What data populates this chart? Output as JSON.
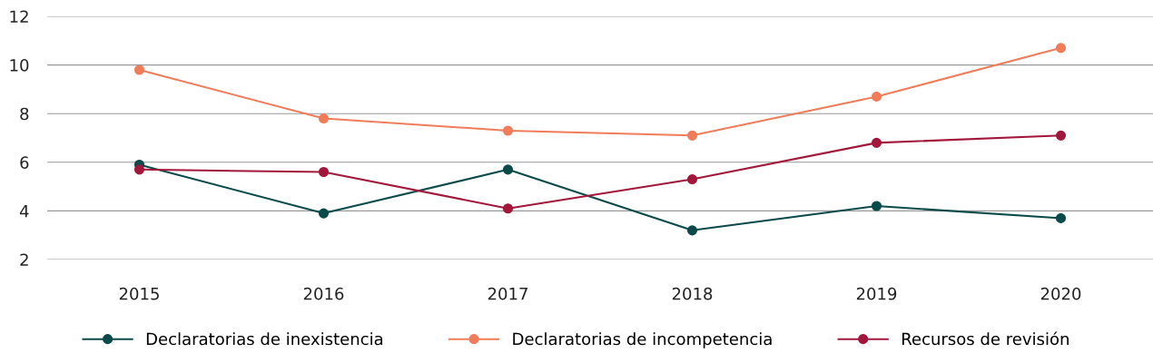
{
  "chart_data": {
    "type": "line",
    "categories": [
      "2015",
      "2016",
      "2017",
      "2018",
      "2019",
      "2020"
    ],
    "series": [
      {
        "name": "Declaratorias de inexistencia",
        "color": "#0b4a4a",
        "values": [
          5.9,
          3.9,
          5.7,
          3.2,
          4.2,
          3.7
        ]
      },
      {
        "name": "Declaratorias de incompetencia",
        "color": "#f07c5a",
        "values": [
          9.8,
          7.8,
          7.3,
          7.1,
          8.7,
          10.7
        ]
      },
      {
        "name": "Recursos de revisión",
        "color": "#a3173c",
        "values": [
          5.7,
          5.6,
          4.1,
          5.3,
          6.8,
          7.1
        ]
      }
    ],
    "ylim": [
      2,
      12
    ],
    "yticks": [
      2,
      4,
      6,
      8,
      10,
      12
    ],
    "grid": "y",
    "legend": "bottom",
    "marker": "circle",
    "line_style": "solid"
  }
}
